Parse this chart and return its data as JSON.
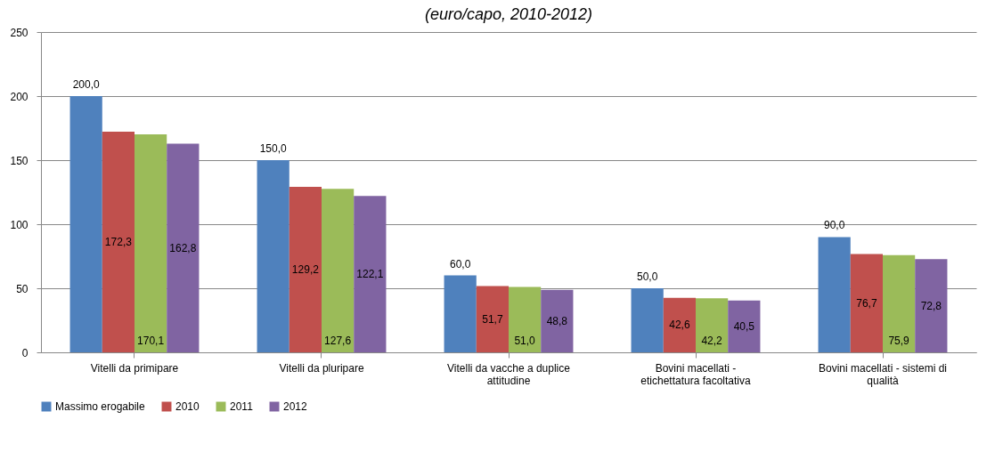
{
  "chart_data": {
    "type": "bar",
    "subtitle": "(euro/capo, 2010-2012)",
    "categories": [
      "Vitelli da primipare",
      "Vitelli da pluripare",
      "Vitelli da vacche a duplice attitudine",
      "Bovini macellati  - etichettatura facoltativa",
      "Bovini macellati  - sistemi di qualità"
    ],
    "series": [
      {
        "name": "Massimo erogabile",
        "color": "#4f81bd",
        "values": [
          200.0,
          150.0,
          60.0,
          50.0,
          90.0
        ],
        "value_labels": [
          "200,0",
          "150,0",
          "60,0",
          "50,0",
          "90,0"
        ]
      },
      {
        "name": "2010",
        "color": "#c0504d",
        "values": [
          172.3,
          129.2,
          51.7,
          42.6,
          76.7
        ],
        "value_labels": [
          "172,3",
          "129,2",
          "51,7",
          "42,6",
          "76,7"
        ]
      },
      {
        "name": "2011",
        "color": "#9bbb59",
        "values": [
          170.1,
          127.6,
          51.0,
          42.2,
          75.9
        ],
        "value_labels": [
          "170,1",
          "127,6",
          "51,0",
          "42,2",
          "75,9"
        ]
      },
      {
        "name": "2012",
        "color": "#8064a2",
        "values": [
          162.8,
          122.1,
          48.8,
          40.5,
          72.8
        ],
        "value_labels": [
          "162,8",
          "122,1",
          "48,8",
          "40,5",
          "72,8"
        ]
      }
    ],
    "ylim": [
      0,
      250
    ],
    "yticks": [
      0,
      50,
      100,
      150,
      200,
      250
    ],
    "grid": "y",
    "legend": "bottom"
  }
}
